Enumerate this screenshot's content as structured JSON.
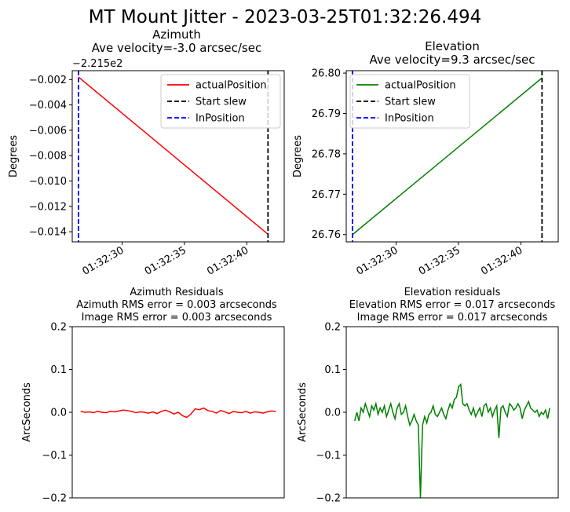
{
  "figure": {
    "title": "MT Mount Jitter - 2023-03-25T01:32:26.494"
  },
  "chart_data": [
    {
      "type": "line",
      "title": "Azimuth",
      "subtitle": "Ave velocity=-3.0 arcsec/sec",
      "ylabel": "Degrees",
      "offset_label": "−2.215e2",
      "x_unit": "seconds after 01:32:00",
      "xlim": [
        26.0,
        43.0
      ],
      "ylim": [
        -0.0148,
        -0.0013
      ],
      "xticks": [
        30,
        35,
        40
      ],
      "xticklabels": [
        "01:32:30",
        "01:32:35",
        "01:32:40"
      ],
      "yticks": [
        -0.014,
        -0.012,
        -0.01,
        -0.008,
        -0.006,
        -0.004,
        -0.002
      ],
      "yticklabels": [
        "−0.014",
        "−0.012",
        "−0.010",
        "−0.008",
        "−0.006",
        "−0.004",
        "−0.002"
      ],
      "legend": {
        "placement": "top-right",
        "entries": [
          "actualPosition",
          "Start slew",
          "InPosition"
        ]
      },
      "series": [
        {
          "name": "actualPosition",
          "color": "#ff0000",
          "style": "solid",
          "x": [
            26.5,
            41.7
          ],
          "y": [
            -0.0018,
            -0.0142
          ]
        }
      ],
      "vlines": [
        {
          "name": "Start slew",
          "color": "#000000",
          "style": "dashed",
          "x": 41.7
        },
        {
          "name": "InPosition",
          "color": "#0000ff",
          "style": "dashed",
          "x": 26.5
        }
      ]
    },
    {
      "type": "line",
      "title": "Elevation",
      "subtitle": "Ave velocity=9.3 arcsec/sec",
      "ylabel": "Degrees",
      "x_unit": "seconds after 01:32:00",
      "xlim": [
        26.0,
        43.0
      ],
      "ylim": [
        26.7582,
        26.8006
      ],
      "xticks": [
        30,
        35,
        40
      ],
      "xticklabels": [
        "01:32:30",
        "01:32:35",
        "01:32:40"
      ],
      "yticks": [
        26.76,
        26.77,
        26.78,
        26.79,
        26.8
      ],
      "yticklabels": [
        "26.76",
        "26.77",
        "26.78",
        "26.79",
        "26.80"
      ],
      "legend": {
        "placement": "top-left",
        "entries": [
          "actualPosition",
          "Start slew",
          "InPosition"
        ]
      },
      "series": [
        {
          "name": "actualPosition",
          "color": "#008000",
          "style": "solid",
          "x": [
            26.5,
            41.7
          ],
          "y": [
            26.76,
            26.7988
          ]
        }
      ],
      "vlines": [
        {
          "name": "Start slew",
          "color": "#000000",
          "style": "dashed",
          "x": 41.7
        },
        {
          "name": "InPosition",
          "color": "#0000ff",
          "style": "dashed",
          "x": 26.5
        }
      ]
    },
    {
      "type": "line",
      "title": "Azimuth Residuals",
      "subtitle": "Azimuth RMS error = 0.003 arcseconds",
      "subtitle2": "Image RMS error = 0.003 arcseconds",
      "ylabel": "ArcSeconds",
      "xlim": [
        0,
        1
      ],
      "ylim": [
        -0.2,
        0.2
      ],
      "yticks": [
        -0.2,
        -0.1,
        0.0,
        0.1,
        0.2
      ],
      "yticklabels": [
        "−0.2",
        "−0.1",
        "0.0",
        "0.1",
        "0.2"
      ],
      "series": [
        {
          "color": "#ff0000",
          "style": "solid",
          "x": [
            0.04,
            0.06,
            0.08,
            0.1,
            0.12,
            0.14,
            0.16,
            0.18,
            0.2,
            0.22,
            0.24,
            0.26,
            0.28,
            0.3,
            0.32,
            0.34,
            0.36,
            0.38,
            0.4,
            0.42,
            0.44,
            0.46,
            0.48,
            0.5,
            0.52,
            0.54,
            0.56,
            0.58,
            0.6,
            0.62,
            0.64,
            0.66,
            0.68,
            0.7,
            0.72,
            0.74,
            0.76,
            0.78,
            0.8,
            0.82,
            0.84,
            0.86,
            0.88,
            0.9,
            0.92,
            0.94,
            0.96
          ],
          "y": [
            0.002,
            0.0,
            0.001,
            -0.001,
            0.002,
            0.0,
            -0.001,
            0.002,
            0.001,
            0.003,
            0.005,
            0.004,
            0.002,
            -0.001,
            0.001,
            0.0,
            -0.002,
            0.001,
            -0.003,
            0.002,
            0.005,
            0.001,
            -0.004,
            0.0,
            -0.008,
            -0.012,
            -0.004,
            0.008,
            0.006,
            0.01,
            0.004,
            0.002,
            -0.002,
            0.004,
            0.001,
            -0.003,
            0.002,
            0.0,
            -0.001,
            0.002,
            -0.002,
            0.001,
            0.0,
            -0.002,
            0.001,
            0.003,
            0.002
          ]
        }
      ]
    },
    {
      "type": "line",
      "title": "Elevation residuals",
      "subtitle": "Elevation RMS error = 0.017 arcseconds",
      "subtitle2": "Image RMS error = 0.017 arcseconds",
      "ylabel": "ArcSeconds",
      "xlim": [
        0,
        1
      ],
      "ylim": [
        -0.2,
        0.2
      ],
      "yticks": [
        -0.2,
        -0.1,
        0.0,
        0.1,
        0.2
      ],
      "yticklabels": [
        "−0.2",
        "−0.1",
        "0.0",
        "0.1",
        "0.2"
      ],
      "series": [
        {
          "color": "#008000",
          "style": "solid",
          "x": [
            0.04,
            0.05,
            0.06,
            0.07,
            0.08,
            0.09,
            0.1,
            0.11,
            0.12,
            0.13,
            0.14,
            0.15,
            0.16,
            0.17,
            0.18,
            0.19,
            0.2,
            0.21,
            0.22,
            0.23,
            0.24,
            0.25,
            0.26,
            0.27,
            0.28,
            0.29,
            0.3,
            0.31,
            0.32,
            0.33,
            0.34,
            0.35,
            0.36,
            0.37,
            0.38,
            0.39,
            0.4,
            0.41,
            0.42,
            0.43,
            0.44,
            0.45,
            0.46,
            0.47,
            0.48,
            0.49,
            0.5,
            0.51,
            0.52,
            0.53,
            0.54,
            0.55,
            0.56,
            0.57,
            0.58,
            0.59,
            0.6,
            0.61,
            0.62,
            0.63,
            0.64,
            0.65,
            0.66,
            0.67,
            0.68,
            0.69,
            0.7,
            0.71,
            0.72,
            0.73,
            0.74,
            0.75,
            0.76,
            0.77,
            0.78,
            0.79,
            0.8,
            0.81,
            0.82,
            0.83,
            0.84,
            0.85,
            0.86,
            0.87,
            0.88,
            0.89,
            0.9,
            0.91,
            0.92,
            0.93,
            0.94,
            0.95,
            0.96
          ],
          "y": [
            -0.02,
            0.0,
            -0.02,
            0.01,
            0.0,
            0.02,
            0.005,
            -0.01,
            0.015,
            0.005,
            0.02,
            -0.005,
            0.01,
            0.0,
            0.015,
            -0.01,
            0.005,
            0.02,
            0.0,
            -0.015,
            0.01,
            0.02,
            -0.005,
            0.0,
            0.015,
            -0.01,
            -0.03,
            -0.02,
            -0.005,
            -0.02,
            -0.03,
            -0.2,
            -0.03,
            -0.01,
            -0.025,
            -0.005,
            0.0,
            0.015,
            -0.005,
            -0.01,
            0.0,
            0.01,
            -0.005,
            -0.015,
            0.005,
            0.02,
            0.01,
            0.03,
            0.035,
            0.06,
            0.065,
            0.02,
            0.015,
            0.02,
            0.005,
            -0.005,
            0.01,
            -0.01,
            0.0,
            0.01,
            -0.01,
            0.015,
            0.02,
            0.0,
            0.01,
            -0.01,
            0.005,
            0.015,
            -0.06,
            0.01,
            0.015,
            0.0,
            -0.01,
            0.02,
            0.015,
            0.005,
            0.01,
            0.02,
            0.01,
            -0.015,
            0.005,
            0.015,
            0.025,
            0.01,
            0.005,
            0.0,
            0.005,
            -0.01,
            0.0,
            -0.005,
            0.005,
            -0.015,
            0.01
          ]
        }
      ]
    }
  ]
}
